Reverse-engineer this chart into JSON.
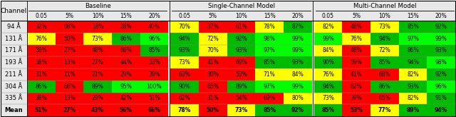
{
  "rows": [
    "94 Å",
    "131 Å",
    "171 Å",
    "193 Å",
    "211 Å",
    "304 Å",
    "335 Å",
    "Mean"
  ],
  "group_names": [
    "Baseline",
    "Single-Channel Model",
    "Multi-Channel Model"
  ],
  "col_labels": [
    "0.05",
    "5%",
    "10%",
    "15%",
    "20%"
  ],
  "values": [
    [
      32,
      8,
      18,
      28,
      40,
      70,
      37,
      61,
      78,
      87,
      82,
      48,
      73,
      85,
      92
    ],
    [
      76,
      50,
      73,
      86,
      96,
      94,
      72,
      92,
      98,
      99,
      99,
      76,
      94,
      97,
      99
    ],
    [
      58,
      27,
      48,
      66,
      85,
      93,
      70,
      93,
      97,
      99,
      84,
      48,
      72,
      86,
      93
    ],
    [
      38,
      13,
      27,
      44,
      53,
      73,
      41,
      69,
      85,
      93,
      90,
      59,
      85,
      94,
      98
    ],
    [
      31,
      11,
      21,
      29,
      39,
      63,
      30,
      53,
      71,
      84,
      76,
      41,
      68,
      82,
      92
    ],
    [
      86,
      66,
      89,
      95,
      100,
      90,
      65,
      89,
      97,
      99,
      94,
      62,
      86,
      93,
      96
    ],
    [
      38,
      13,
      29,
      42,
      51,
      62,
      31,
      54,
      69,
      80,
      73,
      39,
      65,
      82,
      91
    ],
    [
      51,
      27,
      43,
      56,
      66,
      78,
      50,
      73,
      85,
      92,
      85,
      53,
      77,
      89,
      94
    ]
  ],
  "text_values": [
    [
      "32%",
      "08%",
      "18%",
      "28%",
      "40%",
      "70%",
      "37%",
      "61%",
      "78%",
      "87%",
      "82%",
      "48%",
      "73%",
      "85%",
      "92%"
    ],
    [
      "76%",
      "50%",
      "73%",
      "86%",
      "96%",
      "94%",
      "72%",
      "92%",
      "98%",
      "99%",
      "99%",
      "76%",
      "94%",
      "97%",
      "99%"
    ],
    [
      "58%",
      "27%",
      "48%",
      "66%",
      "85%",
      "93%",
      "70%",
      "93%",
      "97%",
      "99%",
      "84%",
      "48%",
      "72%",
      "86%",
      "93%"
    ],
    [
      "38%",
      "13%",
      "27%",
      "44%",
      "53%",
      "73%",
      "41%",
      "69%",
      "85%",
      "93%",
      "90%",
      "59%",
      "85%",
      "94%",
      "98%"
    ],
    [
      "31%",
      "11%",
      "21%",
      "29%",
      "39%",
      "63%",
      "30%",
      "53%",
      "71%",
      "84%",
      "76%",
      "41%",
      "68%",
      "82%",
      "92%"
    ],
    [
      "86%",
      "66%",
      "89%",
      "95%",
      "100%",
      "90%",
      "65%",
      "89%",
      "97%",
      "99%",
      "94%",
      "62%",
      "86%",
      "93%",
      "96%"
    ],
    [
      "38%",
      "13%",
      "29%",
      "42%",
      "51%",
      "62%",
      "31%",
      "54%",
      "69%",
      "80%",
      "73%",
      "39%",
      "65%",
      "82%",
      "91%"
    ],
    [
      "51%",
      "27%",
      "43%",
      "56%",
      "66%",
      "78%",
      "50%",
      "73%",
      "85%",
      "92%",
      "85%",
      "53%",
      "77%",
      "89%",
      "94%"
    ]
  ],
  "color_red": "#ff0000",
  "color_yellow": "#ffff00",
  "color_green": "#00bb00",
  "color_bright_green": "#00ff00",
  "header_bg": "#e8e8e8",
  "text_color": "#000000",
  "bold_text_color": "#000000"
}
